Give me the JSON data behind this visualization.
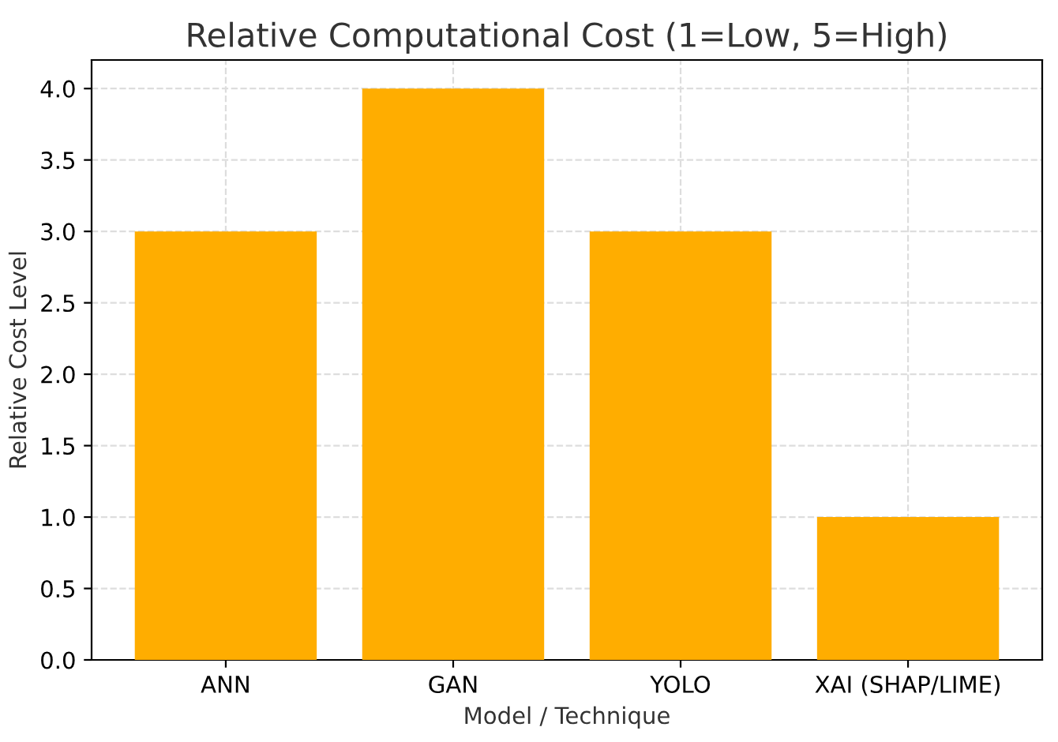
{
  "chart_data": {
    "type": "bar",
    "title": "Relative Computational Cost (1=Low, 5=High)",
    "xlabel": "Model / Technique",
    "ylabel": "Relative Cost Level",
    "categories": [
      "ANN",
      "GAN",
      "YOLO",
      "XAI (SHAP/LIME)"
    ],
    "series": [
      {
        "color": "#ffad00",
        "values": [
          3,
          4,
          3,
          1
        ]
      }
    ],
    "ylim": [
      0,
      4.2
    ],
    "yticks": [
      {
        "value": 0,
        "label": "0.0"
      },
      {
        "value": 0.5,
        "label": "0.5"
      },
      {
        "value": 1,
        "label": "1.0"
      },
      {
        "value": 1.5,
        "label": "1.5"
      },
      {
        "value": 2,
        "label": "2.0"
      },
      {
        "value": 2.5,
        "label": "2.5"
      },
      {
        "value": 3,
        "label": "3.0"
      },
      {
        "value": 3.5,
        "label": "3.5"
      },
      {
        "value": 4,
        "label": "4.0"
      }
    ],
    "grid": true,
    "legend": false
  }
}
